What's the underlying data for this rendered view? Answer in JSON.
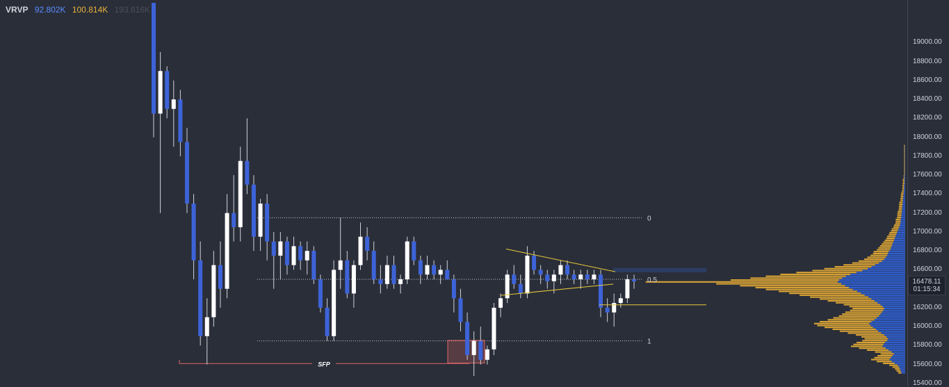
{
  "legend": {
    "label": "VRVP",
    "up_volume": "92.802K",
    "down_volume": "100.814K",
    "total_volume": "193.616K"
  },
  "colors": {
    "background": "#2a2e39",
    "wick": "#d1d4dc",
    "bull": "#ffffff",
    "bear": "#3d63d8",
    "profile_up": "#2f5fd0",
    "profile_down": "#d9a334",
    "trendline": "#e8c93a",
    "sfp": "#e06666"
  },
  "price_tag": {
    "price": "16478.11",
    "countdown": "01:15:34"
  },
  "chart_data": {
    "type": "candlestick",
    "y_axis": {
      "ylim": [
        15370,
        19450
      ],
      "ticks": [
        19000,
        18800,
        18600,
        18400,
        18200,
        18000,
        17800,
        17600,
        17400,
        17200,
        17000,
        16800,
        16600,
        16400,
        16200,
        16000,
        15800,
        15600,
        15400
      ],
      "tick_labels": [
        "19000.00",
        "18800.00",
        "18600.00",
        "18400.00",
        "18200.00",
        "18000.00",
        "17800.00",
        "17600.00",
        "17400.00",
        "17200.00",
        "17000.00",
        "16800.00",
        "16600.00",
        "16400.00",
        "16200.00",
        "16000.00",
        "15800.00",
        "15600.00",
        "15400.00"
      ]
    },
    "candles": [
      [
        19420,
        19420,
        18000,
        18250
      ],
      [
        18250,
        18900,
        17200,
        18700
      ],
      [
        18700,
        18750,
        18200,
        18300
      ],
      [
        18300,
        18600,
        17900,
        18400
      ],
      [
        18400,
        18500,
        17800,
        17950
      ],
      [
        17950,
        18100,
        17200,
        17300
      ],
      [
        17300,
        17400,
        16500,
        16700
      ],
      [
        16700,
        16900,
        15800,
        15900
      ],
      [
        15900,
        16300,
        15600,
        16100
      ],
      [
        16100,
        16800,
        16000,
        16650
      ],
      [
        16650,
        16900,
        16200,
        16400
      ],
      [
        16400,
        17400,
        16300,
        17200
      ],
      [
        17200,
        17600,
        16900,
        17050
      ],
      [
        17050,
        17900,
        16900,
        17750
      ],
      [
        17750,
        18200,
        17400,
        17500
      ],
      [
        17500,
        17600,
        16800,
        16950
      ],
      [
        16950,
        17350,
        16800,
        17300
      ],
      [
        17300,
        17400,
        16700,
        16900
      ],
      [
        16900,
        17000,
        16400,
        16750
      ],
      [
        16750,
        17000,
        16500,
        16900
      ],
      [
        16900,
        16950,
        16550,
        16650
      ],
      [
        16650,
        16950,
        16600,
        16850
      ],
      [
        16850,
        16900,
        16600,
        16700
      ],
      [
        16700,
        16900,
        16550,
        16800
      ],
      [
        16800,
        16850,
        16450,
        16500
      ],
      [
        16500,
        16550,
        16150,
        16200
      ],
      [
        16200,
        16300,
        15850,
        15900
      ],
      [
        15900,
        16700,
        15850,
        16600
      ],
      [
        16600,
        17150,
        16400,
        16700
      ],
      [
        16700,
        16800,
        16300,
        16350
      ],
      [
        16350,
        16700,
        16200,
        16650
      ],
      [
        16650,
        17100,
        16600,
        16950
      ],
      [
        16950,
        17050,
        16700,
        16800
      ],
      [
        16800,
        16900,
        16450,
        16500
      ],
      [
        16500,
        16650,
        16350,
        16450
      ],
      [
        16450,
        16750,
        16400,
        16650
      ],
      [
        16650,
        16750,
        16400,
        16450
      ],
      [
        16450,
        16550,
        16350,
        16500
      ],
      [
        16500,
        16950,
        16450,
        16900
      ],
      [
        16900,
        16950,
        16650,
        16700
      ],
      [
        16700,
        16750,
        16450,
        16550
      ],
      [
        16550,
        16750,
        16500,
        16650
      ],
      [
        16650,
        16700,
        16500,
        16550
      ],
      [
        16550,
        16650,
        16450,
        16600
      ],
      [
        16600,
        16700,
        16500,
        16500
      ],
      [
        16500,
        16550,
        16150,
        16300
      ],
      [
        16300,
        16400,
        15950,
        16050
      ],
      [
        16050,
        16150,
        15650,
        15700
      ],
      [
        15700,
        15950,
        15480,
        15850
      ],
      [
        15850,
        16000,
        15600,
        15650
      ],
      [
        15650,
        15800,
        15600,
        15760
      ],
      [
        15760,
        16250,
        15700,
        16200
      ],
      [
        16200,
        16350,
        16100,
        16300
      ],
      [
        16300,
        16600,
        16250,
        16550
      ],
      [
        16550,
        16650,
        16400,
        16450
      ],
      [
        16450,
        16550,
        16300,
        16350
      ],
      [
        16350,
        16850,
        16300,
        16750
      ],
      [
        16750,
        16800,
        16550,
        16600
      ],
      [
        16600,
        16650,
        16450,
        16550
      ],
      [
        16550,
        16600,
        16400,
        16480
      ],
      [
        16480,
        16600,
        16350,
        16550
      ],
      [
        16550,
        16700,
        16450,
        16650
      ],
      [
        16650,
        16700,
        16500,
        16550
      ],
      [
        16550,
        16600,
        16450,
        16500
      ],
      [
        16500,
        16600,
        16400,
        16550
      ],
      [
        16550,
        16600,
        16450,
        16500
      ],
      [
        16500,
        16600,
        16450,
        16550
      ],
      [
        16550,
        16600,
        16100,
        16200
      ],
      [
        16200,
        16300,
        16050,
        16150
      ],
      [
        16150,
        16350,
        16000,
        16250
      ],
      [
        16250,
        16350,
        16200,
        16300
      ],
      [
        16300,
        16550,
        16250,
        16500
      ],
      [
        16500,
        16550,
        16400,
        16478
      ]
    ],
    "fib_levels": [
      {
        "label": "0",
        "price": 17150
      },
      {
        "label": "0.5",
        "price": 16500
      },
      {
        "label": "1",
        "price": 15850
      }
    ],
    "triangle": {
      "upper": [
        [
          16820,
          0
        ],
        [
          16580,
          1
        ]
      ],
      "lower": [
        [
          16330,
          0
        ],
        [
          16450,
          1
        ]
      ]
    },
    "breakdown_line": 16230,
    "resistance_zone": [
      16575,
      16620
    ],
    "sfp": {
      "label": "SFP",
      "price": 15610,
      "box": [
        15615,
        15855
      ]
    },
    "volume_profile": {
      "bin_start": 15500,
      "bin_size": 20,
      "up": [
        10,
        12,
        14,
        16,
        20,
        28,
        36,
        42,
        38,
        34,
        30,
        36,
        44,
        52,
        60,
        58,
        54,
        48,
        46,
        50,
        56,
        64,
        72,
        78,
        86,
        92,
        96,
        90,
        82,
        76,
        70,
        66,
        62,
        58,
        56,
        60,
        66,
        74,
        82,
        90,
        98,
        108,
        118,
        128,
        140,
        150,
        160,
        170,
        180,
        176,
        168,
        158,
        146,
        130,
        114,
        100,
        90,
        80,
        70,
        62,
        56,
        52,
        48,
        46,
        44,
        40,
        38,
        36,
        34,
        32,
        30,
        28,
        26,
        24,
        22,
        20,
        18,
        16,
        14,
        13,
        12,
        12,
        11,
        10,
        10,
        9,
        9,
        8,
        8,
        7,
        7,
        6,
        6,
        5,
        5,
        4,
        4,
        3,
        3,
        3,
        2,
        2,
        2,
        2,
        2,
        1,
        1,
        1,
        1,
        1,
        1,
        1,
        1,
        1,
        1,
        1,
        1,
        1,
        1,
        1,
        1
      ],
      "down": [
        4,
        5,
        6,
        8,
        10,
        14,
        18,
        22,
        20,
        18,
        16,
        20,
        26,
        32,
        38,
        36,
        34,
        30,
        28,
        30,
        34,
        40,
        46,
        52,
        58,
        64,
        66,
        62,
        56,
        52,
        48,
        46,
        44,
        40,
        38,
        40,
        44,
        50,
        56,
        62,
        70,
        78,
        86,
        94,
        104,
        112,
        126,
        150,
        230,
        130,
        110,
        96,
        84,
        72,
        60,
        52,
        44,
        38,
        32,
        28,
        24,
        22,
        20,
        18,
        18,
        16,
        15,
        14,
        13,
        12,
        11,
        10,
        10,
        9,
        9,
        8,
        8,
        7,
        7,
        6,
        6,
        6,
        5,
        5,
        5,
        5,
        4,
        4,
        4,
        4,
        4,
        3,
        3,
        3,
        3,
        3,
        2,
        2,
        2,
        2,
        2,
        2,
        2,
        1,
        1,
        1,
        1,
        1,
        1,
        1,
        1,
        1,
        1,
        1,
        1,
        1,
        1,
        1,
        1,
        1,
        1
      ]
    }
  }
}
